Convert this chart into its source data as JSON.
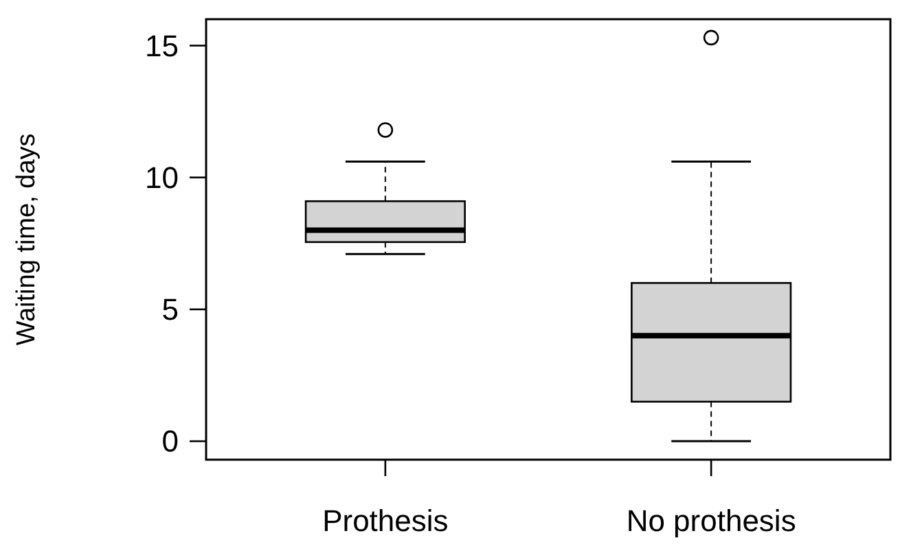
{
  "chart_data": {
    "type": "box",
    "ylabel": "Waiting time, days",
    "categories": [
      "Prothesis",
      "No prothesis"
    ],
    "color": "#d3d3d3",
    "ylim": [
      -0.7,
      16
    ],
    "yticks": [
      0,
      5,
      10,
      15
    ],
    "grid": false,
    "boxes": [
      {
        "low": 7.1,
        "q1": 7.55,
        "median": 8.0,
        "q3": 9.1,
        "high": 10.6,
        "outliers": [
          11.8
        ]
      },
      {
        "low": 0,
        "q1": 1.5,
        "median": 4.0,
        "q3": 6.0,
        "high": 10.6,
        "outliers": [
          15.3
        ]
      }
    ]
  }
}
